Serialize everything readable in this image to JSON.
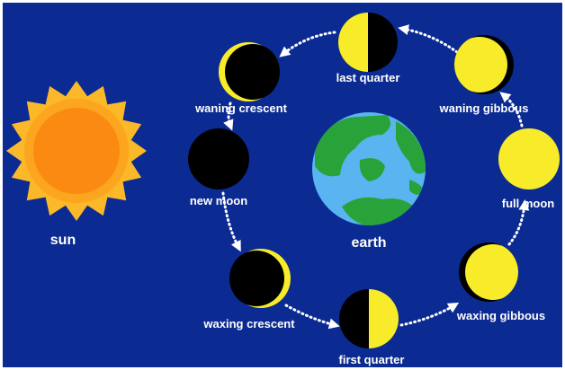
{
  "sun": {
    "label": "sun"
  },
  "earth": {
    "label": "earth"
  },
  "phases": [
    {
      "label": "last quarter"
    },
    {
      "label": "waning gibbous"
    },
    {
      "label": "full moon"
    },
    {
      "label": "waxing gibbous"
    },
    {
      "label": "first quarter"
    },
    {
      "label": "waxing crescent"
    },
    {
      "label": "new moon"
    },
    {
      "label": "waning crescent"
    }
  ]
}
